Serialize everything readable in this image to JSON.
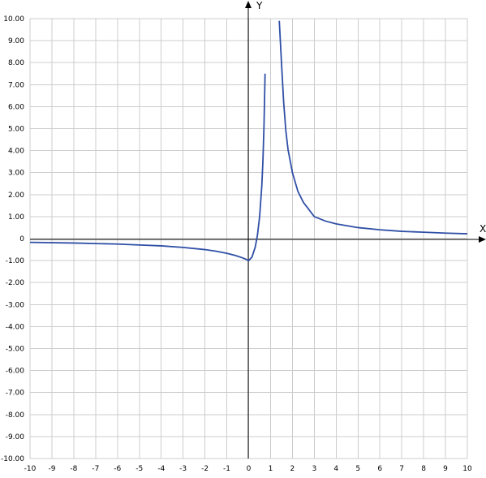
{
  "chart_data": {
    "type": "line",
    "title": "",
    "xlabel": "X",
    "ylabel": "Y",
    "xlim": [
      -10,
      10
    ],
    "ylim": [
      -10,
      10
    ],
    "grid": true,
    "x_ticks": [
      "-10",
      "-9",
      "-8",
      "-7",
      "-6",
      "-5",
      "-4",
      "-3",
      "-2",
      "-1",
      "0",
      "1",
      "2",
      "3",
      "4",
      "5",
      "6",
      "7",
      "8",
      "9",
      "10"
    ],
    "y_ticks": [
      "10.00",
      "9.00",
      "8.00",
      "7.00",
      "6.00",
      "5.00",
      "4.00",
      "3.00",
      "2.00",
      "1.00",
      "0",
      "-1.00",
      "-2.00",
      "-3.00",
      "-4.00",
      "-5.00",
      "-6.00",
      "-7.00",
      "-8.00",
      "-9.00",
      "-10.00"
    ],
    "line_color": "#2f4fa6",
    "vertical_asymptote_x": 1,
    "series": [
      {
        "x": [
          -10,
          -8,
          -6,
          -5,
          -4,
          -3,
          -2,
          -1.5,
          -1,
          -0.6,
          -0.3,
          -0.15,
          0,
          0.15,
          0.3,
          0.4,
          0.5,
          0.6,
          0.65,
          0.7,
          0.75
        ],
        "y": [
          -0.17,
          -0.2,
          -0.25,
          -0.29,
          -0.33,
          -0.4,
          -0.5,
          -0.57,
          -0.67,
          -0.77,
          -0.87,
          -0.93,
          -1.0,
          -0.84,
          -0.39,
          0.15,
          1.0,
          2.39,
          3.5,
          5.1,
          7.5
        ]
      },
      {
        "x": [
          1.4,
          1.5,
          1.6,
          1.7,
          1.8,
          2,
          2.25,
          2.5,
          3,
          3.5,
          4,
          5,
          6,
          7,
          8,
          9,
          10
        ],
        "y": [
          9.9,
          8.0,
          6.2,
          4.9,
          4.05,
          3.0,
          2.15,
          1.65,
          1.0,
          0.8,
          0.67,
          0.5,
          0.4,
          0.33,
          0.29,
          0.25,
          0.22
        ]
      }
    ]
  }
}
